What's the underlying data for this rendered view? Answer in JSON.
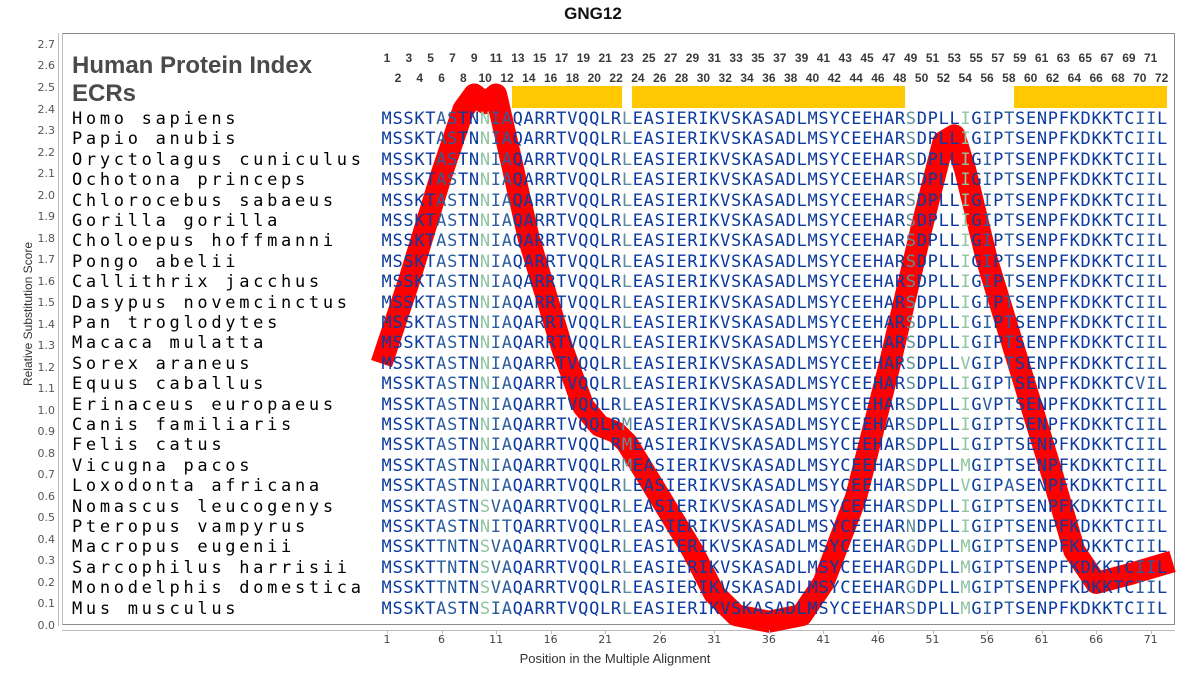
{
  "chart_data": {
    "type": "line",
    "title": "GNG12",
    "xlabel": "Position in the Multiple Alignment",
    "ylabel": "Relative Substitution Score",
    "xlim": [
      0,
      73
    ],
    "ylim": [
      0.0,
      2.7
    ],
    "yticks": [
      "0.0",
      "0.1",
      "0.2",
      "0.3",
      "0.4",
      "0.5",
      "0.6",
      "0.7",
      "0.8",
      "0.9",
      "1.0",
      "1.1",
      "1.2",
      "1.3",
      "1.4",
      "1.5",
      "1.6",
      "1.7",
      "1.8",
      "1.9",
      "2.0",
      "2.1",
      "2.2",
      "2.3",
      "2.4",
      "2.5",
      "2.6",
      "2.7"
    ],
    "xticks": [
      "1",
      "6",
      "11",
      "16",
      "21",
      "26",
      "31",
      "36",
      "41",
      "46",
      "51",
      "56",
      "61",
      "66",
      "71"
    ],
    "grid": false,
    "line_color": "#ff0000",
    "series": [
      {
        "x": [
          0.5,
          3,
          6,
          8,
          9,
          10,
          11,
          12,
          14,
          17,
          19,
          20.5,
          22,
          23,
          26,
          29,
          31,
          33,
          36,
          39,
          41,
          44,
          47,
          50,
          52,
          53,
          54,
          56,
          59,
          62,
          64,
          66,
          69,
          73
        ],
        "y": [
          1.22,
          1.6,
          2.1,
          2.4,
          2.47,
          2.43,
          2.47,
          2.25,
          1.8,
          1.3,
          1.02,
          0.93,
          0.9,
          0.85,
          0.6,
          0.35,
          0.15,
          0.05,
          0.02,
          0.05,
          0.2,
          0.6,
          1.2,
          1.85,
          2.25,
          2.28,
          2.12,
          1.7,
          1.2,
          0.7,
          0.35,
          0.2,
          0.24,
          0.3
        ]
      }
    ]
  },
  "panel": {
    "heading_index": "Human Protein Index",
    "heading_ecrs": "ECRs",
    "ecr_color": "#ffc800",
    "ecr_ranges": [
      [
        13,
        22
      ],
      [
        24,
        48
      ],
      [
        59,
        72
      ]
    ],
    "position_numbers_odd": [
      "1",
      "3",
      "5",
      "7",
      "9",
      "11",
      "13",
      "15",
      "17",
      "19",
      "21",
      "23",
      "25",
      "27",
      "29",
      "31",
      "33",
      "35",
      "37",
      "39",
      "41",
      "43",
      "45",
      "47",
      "49",
      "51",
      "53",
      "55",
      "57",
      "59",
      "61",
      "63",
      "65",
      "67",
      "69",
      "71"
    ],
    "position_numbers_even": [
      "2",
      "4",
      "6",
      "8",
      "10",
      "12",
      "14",
      "16",
      "18",
      "20",
      "22",
      "24",
      "26",
      "28",
      "30",
      "32",
      "34",
      "36",
      "38",
      "40",
      "42",
      "44",
      "46",
      "48",
      "50",
      "52",
      "54",
      "56",
      "58",
      "60",
      "62",
      "64",
      "66",
      "68",
      "70",
      "72"
    ]
  },
  "alignment": {
    "colors": {
      "conserved": "#0b3aa0",
      "partial": "#2c5d9e",
      "variable": "#5e8e9c",
      "highly_variable": "#8ec4a0"
    },
    "rows": [
      {
        "species": "Homo sapiens",
        "seq": "MSSKTASTNNIAQARRTVQQLRLEASIERIKVSKASADLMSYCEEHARSDPLLIGIPTSENPFKDKKTCIIL"
      },
      {
        "species": "Papio anubis",
        "seq": "MSSKTASTNNIAQARRTVQQLRLEASIERIKVSKASADLMSYCEEHARSDPLLIGIPTSENPFKDKKTCIIL"
      },
      {
        "species": "Oryctolagus cuniculus",
        "seq": "MSSKTASTNNIAQARRTVQQLRLEASIERIKVSKASADLMSYCEEHARSDPLLIGIPTSENPFKDKKTCIIL"
      },
      {
        "species": "Ochotona princeps",
        "seq": "MSSKTASTNNIAQARRTVQQLRLEASIERIKVSKASADLMSYCEEHARSDPLLIGIPTSENPFKDKKTCIIL"
      },
      {
        "species": "Chlorocebus sabaeus",
        "seq": "MSSKTASTNNIAQARRTVQQLRLEASIERIKVSKASADLMSYCEEHARSDPLLIGIPTSENPFKDKKTCIIL"
      },
      {
        "species": "Gorilla gorilla",
        "seq": "MSSKTASTNNIAQARRTVQQLRLEASIERIKVSKASADLMSYCEEHARSDPLLIGIPTSENPFKDKKTCIIL"
      },
      {
        "species": "Choloepus hoffmanni",
        "seq": "MSSKTASTNNIAQARRTVQQLRLEASIERIKVSKASADLMSYCEEHARSDPLLIGIPTSENPFKDKKTCIIL"
      },
      {
        "species": "Pongo abelii",
        "seq": "MSSKTASTNNIAQARRTVQQLRLEASIERIKVSKASADLMSYCEEHARSDPLLIGIPTSENPFKDKKTCIIL"
      },
      {
        "species": "Callithrix jacchus",
        "seq": "MSSKTASTNNIAQARRTVQQLRLEASIERIKVSKASADLMSYCEEHARSDPLLIGIPTSENPFKDKKTCIIL"
      },
      {
        "species": "Dasypus novemcinctus",
        "seq": "MSSKTASTNNIAQARRTVQQLRLEASIERIKVSKASADLMSYCEEHARSDPLLIGIPTSENPFKDKKTCIIL"
      },
      {
        "species": "Pan troglodytes",
        "seq": "MSSKTASTNNIAQARRTVQQLRLEASIERIKVSKASADLMSYCEEHARSDPLLIGIPTSENPFKDKKTCIIL"
      },
      {
        "species": "Macaca mulatta",
        "seq": "MSSKTASTNNIAQARRTVQQLRLEASIERIKVSKASADLMSYCEEHARSDPLLIGIPTSENPFKDKKTCIIL"
      },
      {
        "species": "Sorex araneus",
        "seq": "MSSKTASTNNIAQARRTVQQLRLEASIERIKVSKASADLMSYCEEHARSDPLLVGIPTSENPFKDKKTCIIL"
      },
      {
        "species": "Equus caballus",
        "seq": "MSSKTASTNNIAQARRTVQQLRLEASIERIKVSKASADLMSYCEEHARSDPLLIGIPTSENPFKDKKTCVIL"
      },
      {
        "species": "Erinaceus europaeus",
        "seq": "MSSKTASTNNIAQARRTVQQLRLEASIERIKVSKASADLMSYCEEHARSDPLLIGVPTSENPFKDKKTCIIL"
      },
      {
        "species": "Canis familiaris",
        "seq": "MSSKTASTNNIAQARRTVQQLRMEASIERIKVSKASADLMSYCEEHARSDPLLIGIPTSENPFKDKKTCIIL"
      },
      {
        "species": "Felis catus",
        "seq": "MSSKTASTNNIAQARRTVQQLRMEASIERIKVSKASADLMSYCEEHARSDPLLIGIPTSENPFKDKKTCIIL"
      },
      {
        "species": "Vicugna pacos",
        "seq": "MSSKTASTNNIAQARRTVQQLRMEASIERIKVSKASADLMSYCEEHARSDPLLMGIPTSENPFKDKKTCIIL"
      },
      {
        "species": "Loxodonta africana",
        "seq": "MSSKTASTNNIAQARRTVQQLRLEASIERIKVSKASADLMSYCEEHARSDPLLVGIPASENPFKDKKTCIIL"
      },
      {
        "species": "Nomascus leucogenys",
        "seq": "MSSKTASTNSVAQARRTVQQLRLEASIERIKVSKASADLMSYCEEHARSDPLLIGIPTSENPFKDKKTCIIL"
      },
      {
        "species": "Pteropus vampyrus",
        "seq": "MSSKTASTNNITQARRTVQQLRLEASIERIKVSKASADLMSYCEEHARNDPLLIGIPTSENPFKDKKTCIIL"
      },
      {
        "species": "Macropus eugenii",
        "seq": "MSSKTTNTNSVAQARRTVQQLRLEASIERIKVSKASADLMSYCEEHARGDPLLMGIPTSENPFKDKKTCIIL"
      },
      {
        "species": "Sarcophilus harrisii",
        "seq": "MSSKTTNTNSVAQARRTVQQLRLEASIERIKVSKASADLMSYCEEHARGDPLLMGIPTSENPFKDKKTCIIL"
      },
      {
        "species": "Monodelphis domestica",
        "seq": "MSSKTTNTNSVAQARRTVQQLRLEASIERIKVSKASADLMSYCEEHARGDPLLMGIPTSENPFKDKKTCIIL"
      },
      {
        "species": "Mus musculus",
        "seq": "MSSKTASTNSIAQARRTVQQLRLEASIERIKVSKASADLMSYCEEHARSDPLLMGIPTSENPFKDKKTCIIL"
      }
    ]
  }
}
